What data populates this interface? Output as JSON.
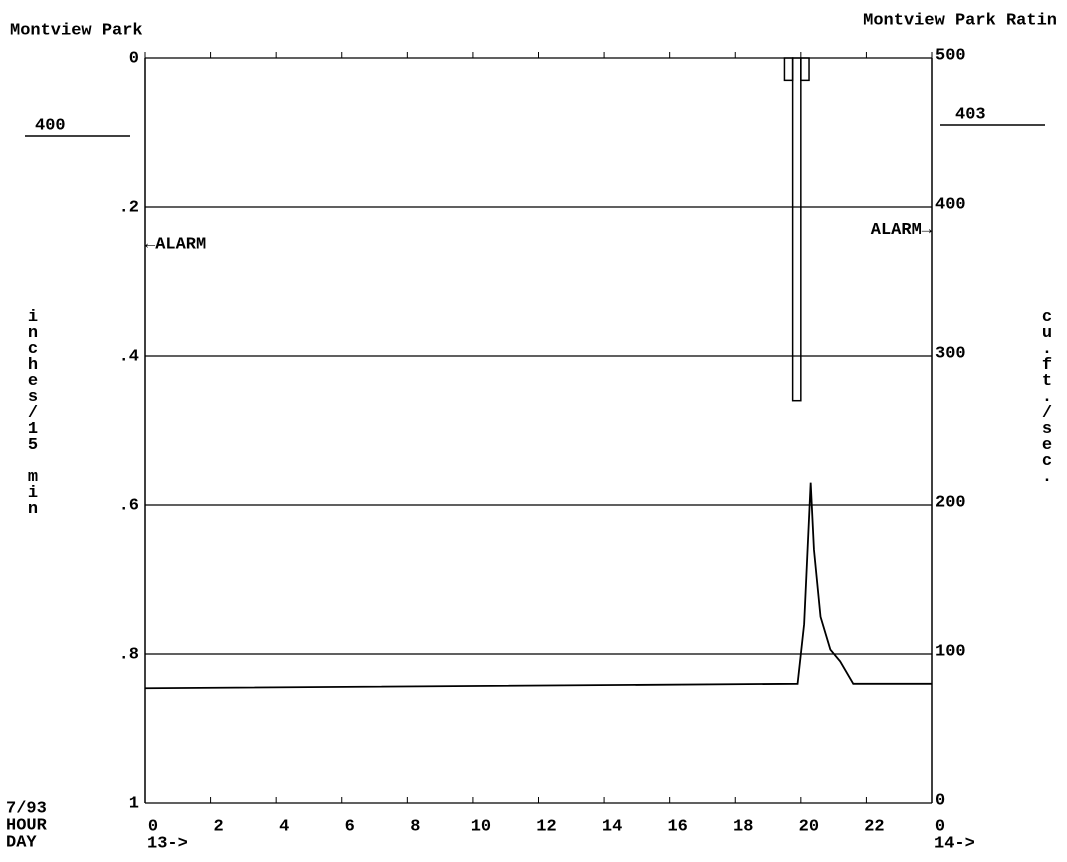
{
  "chart_data": {
    "type": "combo",
    "title": "Montview Park",
    "title_right": "Montview Park Ratin",
    "left_reading": 400,
    "right_reading": 403,
    "y_label": "inches/15 min",
    "y2_label": "cu.ft./sec.",
    "date": "7/93",
    "x_label": "HOUR",
    "day_label": "DAY",
    "xlim": [
      0,
      24
    ],
    "xticks": [
      0,
      2,
      4,
      6,
      8,
      10,
      12,
      14,
      16,
      18,
      20,
      22,
      {
        "value": 24,
        "label": "0"
      }
    ],
    "day_ticks": [
      {
        "value": 0,
        "label": "13->"
      },
      {
        "value": 24,
        "label": "14->"
      }
    ],
    "ylim": [
      1,
      0
    ],
    "yticks": [
      0,
      {
        "value": 0.2,
        "label": ".2"
      },
      {
        "value": 0.4,
        "label": ".4"
      },
      {
        "value": 0.6,
        "label": ".6"
      },
      {
        "value": 0.8,
        "label": ".8"
      },
      1
    ],
    "y2lim": [
      0,
      500
    ],
    "y2ticks": [
      0,
      100,
      200,
      300,
      400,
      500
    ],
    "grid": true,
    "alarms": [
      {
        "label": "←ALARM",
        "value": 0.25,
        "axis": "y"
      },
      {
        "label": "ALARM→",
        "value": 385,
        "axis": "y2"
      }
    ],
    "series": [
      {
        "type": "bar",
        "axis": "y",
        "color": "#000000",
        "bins": [
          19.5,
          19.75,
          20,
          20.25
        ],
        "values": [
          0.03,
          0.46,
          0.03
        ]
      },
      {
        "type": "line",
        "axis": "y2",
        "color": "#000000",
        "x": [
          0,
          19.9,
          20.1,
          20.3,
          20.4,
          20.6,
          20.9,
          21.2,
          21.6,
          24
        ],
        "values": [
          77,
          80,
          120,
          215,
          170,
          125,
          103,
          95,
          80,
          80
        ]
      }
    ]
  }
}
